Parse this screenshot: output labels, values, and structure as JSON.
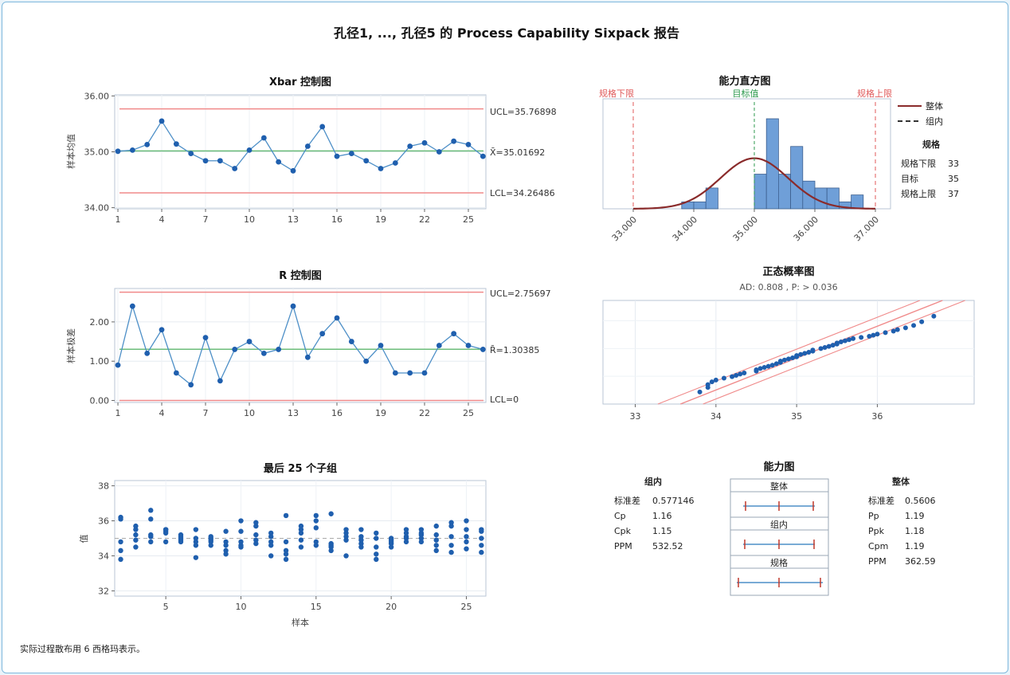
{
  "report": {
    "title": "孔径1, ..., 孔径5 的 Process Capability Sixpack 报告",
    "footnote": "实际过程散布用 6 西格玛表示。"
  },
  "colors": {
    "line": "#4d8fc7",
    "point": "#1f5fae",
    "center": "#6cbd7a",
    "limit": "#f08a8a",
    "spec": "#e05a5a",
    "target": "#2e9a4e",
    "curve": "#8a2b2b",
    "bar": "#6f9fd8",
    "barEdge": "#3d5f8f"
  },
  "chart_data": [
    {
      "id": "xbar",
      "type": "line",
      "title": "Xbar 控制图",
      "ylabel": "样本均值",
      "x": [
        1,
        2,
        3,
        4,
        5,
        6,
        7,
        8,
        9,
        10,
        11,
        12,
        13,
        14,
        15,
        16,
        17,
        18,
        19,
        20,
        21,
        22,
        23,
        24,
        25,
        26
      ],
      "values": [
        35.01,
        35.03,
        35.13,
        35.55,
        35.14,
        34.97,
        34.84,
        34.84,
        34.7,
        35.03,
        35.25,
        34.82,
        34.66,
        35.1,
        35.45,
        34.92,
        34.97,
        34.84,
        34.7,
        34.8,
        35.1,
        35.16,
        35.0,
        35.19,
        35.13,
        34.92
      ],
      "xticks": [
        1,
        4,
        7,
        10,
        13,
        16,
        19,
        22,
        25
      ],
      "yticks": [
        "34.00",
        "35.00",
        "36.00"
      ],
      "ylim": [
        33.98,
        36.02
      ],
      "ucl": 35.76898,
      "center": 35.01692,
      "lcl": 34.26486,
      "ucl_label": "UCL=35.76898",
      "center_label": "X̄=35.01692",
      "lcl_label": "LCL=34.26486"
    },
    {
      "id": "rchart",
      "type": "line",
      "title": "R 控制图",
      "ylabel": "样本极差",
      "x": [
        1,
        2,
        3,
        4,
        5,
        6,
        7,
        8,
        9,
        10,
        11,
        12,
        13,
        14,
        15,
        16,
        17,
        18,
        19,
        20,
        21,
        22,
        23,
        24,
        25,
        26
      ],
      "values": [
        0.9,
        2.4,
        1.2,
        1.8,
        0.7,
        0.4,
        1.6,
        0.5,
        1.3,
        1.5,
        1.2,
        1.3,
        2.4,
        1.1,
        1.7,
        2.1,
        1.5,
        1.0,
        1.4,
        0.7,
        0.7,
        0.7,
        1.4,
        1.7,
        1.4,
        1.3
      ],
      "xticks": [
        1,
        4,
        7,
        10,
        13,
        16,
        19,
        22,
        25
      ],
      "yticks": [
        "0.00",
        "1.00",
        "2.00"
      ],
      "ylim": [
        -0.05,
        2.85
      ],
      "ucl": 2.75697,
      "center": 1.30385,
      "lcl": 0,
      "ucl_label": "UCL=2.75697",
      "center_label": "R̄=1.30385",
      "lcl_label": "LCL=0"
    },
    {
      "id": "last25",
      "type": "scatter",
      "title": "最后 25 个子组",
      "xlabel": "样本",
      "ylabel": "值",
      "xticks": [
        5,
        10,
        15,
        20,
        25
      ],
      "yticks": [
        32,
        34,
        36,
        38
      ],
      "ylim": [
        31.7,
        38.3
      ],
      "xlim": [
        1.6,
        26.3
      ],
      "reference": 35.0,
      "groups": [
        {
          "x": 2,
          "y": [
            33.8,
            34.3,
            34.8,
            36.1,
            36.2
          ]
        },
        {
          "x": 3,
          "y": [
            34.5,
            34.9,
            35.2,
            35.5,
            35.7
          ]
        },
        {
          "x": 4,
          "y": [
            34.8,
            35.1,
            35.2,
            36.1,
            36.6
          ]
        },
        {
          "x": 5,
          "y": [
            34.8,
            35.3,
            35.4,
            35.5,
            35.5
          ]
        },
        {
          "x": 6,
          "y": [
            34.8,
            34.9,
            35.0,
            35.1,
            35.2
          ]
        },
        {
          "x": 7,
          "y": [
            33.9,
            34.6,
            34.8,
            35.0,
            35.5
          ]
        },
        {
          "x": 8,
          "y": [
            34.6,
            34.8,
            34.9,
            35.0,
            35.1
          ]
        },
        {
          "x": 9,
          "y": [
            34.1,
            34.3,
            34.6,
            34.8,
            35.4
          ]
        },
        {
          "x": 10,
          "y": [
            34.5,
            34.6,
            34.8,
            35.4,
            36.0
          ]
        },
        {
          "x": 11,
          "y": [
            34.7,
            34.9,
            35.2,
            35.7,
            35.9
          ]
        },
        {
          "x": 12,
          "y": [
            34.0,
            34.6,
            34.8,
            35.1,
            35.3
          ]
        },
        {
          "x": 13,
          "y": [
            33.8,
            34.1,
            34.3,
            34.8,
            36.3
          ]
        },
        {
          "x": 14,
          "y": [
            34.5,
            34.9,
            35.3,
            35.5,
            35.7
          ]
        },
        {
          "x": 15,
          "y": [
            34.6,
            34.8,
            35.6,
            36.0,
            36.3
          ]
        },
        {
          "x": 16,
          "y": [
            34.3,
            34.5,
            34.6,
            34.7,
            36.4
          ]
        },
        {
          "x": 17,
          "y": [
            34.0,
            34.9,
            35.1,
            35.3,
            35.5
          ]
        },
        {
          "x": 18,
          "y": [
            34.5,
            34.7,
            34.9,
            35.1,
            35.5
          ]
        },
        {
          "x": 19,
          "y": [
            33.8,
            34.1,
            34.5,
            35.0,
            35.3
          ]
        },
        {
          "x": 20,
          "y": [
            34.5,
            34.7,
            34.8,
            34.9,
            35.0
          ]
        },
        {
          "x": 21,
          "y": [
            34.8,
            35.0,
            35.1,
            35.3,
            35.5
          ]
        },
        {
          "x": 22,
          "y": [
            34.8,
            35.0,
            35.2,
            35.3,
            35.5
          ]
        },
        {
          "x": 23,
          "y": [
            34.3,
            34.6,
            34.9,
            35.2,
            35.7
          ]
        },
        {
          "x": 24,
          "y": [
            34.2,
            34.6,
            35.1,
            35.7,
            35.9
          ]
        },
        {
          "x": 25,
          "y": [
            34.4,
            34.8,
            35.1,
            35.5,
            36.0
          ]
        },
        {
          "x": 26,
          "y": [
            34.2,
            34.6,
            35.0,
            35.4,
            35.5
          ]
        }
      ]
    },
    {
      "id": "histogram",
      "type": "bar",
      "title": "能力直方图",
      "bin_start": 33.6,
      "bin_width": 0.2,
      "counts": [
        0,
        1,
        1,
        3,
        0,
        0,
        0,
        5,
        13,
        5,
        9,
        4,
        3,
        3,
        1,
        2,
        0,
        0
      ],
      "xticks": [
        "33.000",
        "34.000",
        "35.000",
        "36.000",
        "37.000"
      ],
      "xlim": [
        32.5,
        37.25
      ],
      "lsl_label": "规格下限",
      "target_label": "目标值",
      "usl_label": "规格上限",
      "lsl": 33,
      "target": 35,
      "usl": 37,
      "legend": [
        "整体",
        "组内"
      ],
      "spec_table": {
        "heading": "规格",
        "rows": [
          [
            "规格下限",
            "33"
          ],
          [
            "目标",
            "35"
          ],
          [
            "规格上限",
            "37"
          ]
        ]
      }
    },
    {
      "id": "normprob",
      "type": "scatter",
      "title": "正态概率图",
      "subtitle": "AD: 0.808 , P: > 0.036",
      "xticks": [
        33,
        34,
        35,
        36
      ],
      "xlim": [
        32.6,
        37.2
      ],
      "points": [
        [
          33.8,
          -2.35
        ],
        [
          33.9,
          -2.1
        ],
        [
          33.9,
          -1.95
        ],
        [
          33.95,
          -1.8
        ],
        [
          34.0,
          -1.7
        ],
        [
          34.1,
          -1.6
        ],
        [
          34.2,
          -1.52
        ],
        [
          34.25,
          -1.45
        ],
        [
          34.3,
          -1.38
        ],
        [
          34.35,
          -1.32
        ],
        [
          34.5,
          -1.22
        ],
        [
          34.5,
          -1.15
        ],
        [
          34.55,
          -1.08
        ],
        [
          34.6,
          -1.02
        ],
        [
          34.65,
          -0.96
        ],
        [
          34.7,
          -0.9
        ],
        [
          34.75,
          -0.82
        ],
        [
          34.8,
          -0.75
        ],
        [
          34.8,
          -0.68
        ],
        [
          34.85,
          -0.62
        ],
        [
          34.9,
          -0.56
        ],
        [
          34.95,
          -0.5
        ],
        [
          35.0,
          -0.45
        ],
        [
          35.0,
          -0.38
        ],
        [
          35.05,
          -0.32
        ],
        [
          35.1,
          -0.26
        ],
        [
          35.15,
          -0.2
        ],
        [
          35.2,
          -0.14
        ],
        [
          35.2,
          -0.08
        ],
        [
          35.3,
          0.0
        ],
        [
          35.35,
          0.06
        ],
        [
          35.4,
          0.12
        ],
        [
          35.45,
          0.18
        ],
        [
          35.5,
          0.24
        ],
        [
          35.5,
          0.3
        ],
        [
          35.55,
          0.36
        ],
        [
          35.6,
          0.42
        ],
        [
          35.65,
          0.48
        ],
        [
          35.7,
          0.54
        ],
        [
          35.8,
          0.6
        ],
        [
          35.9,
          0.66
        ],
        [
          35.95,
          0.72
        ],
        [
          36.0,
          0.78
        ],
        [
          36.1,
          0.86
        ],
        [
          36.2,
          0.94
        ],
        [
          36.25,
          1.02
        ],
        [
          36.35,
          1.12
        ],
        [
          36.45,
          1.25
        ],
        [
          36.55,
          1.45
        ],
        [
          36.7,
          1.75
        ]
      ]
    }
  ],
  "capability": {
    "within": {
      "heading": "组内",
      "rows": [
        [
          "标准差",
          "0.577146"
        ],
        [
          "Cp",
          "1.16"
        ],
        [
          "Cpk",
          "1.15"
        ],
        [
          "PPM",
          "532.52"
        ]
      ]
    },
    "overall": {
      "heading": "整体",
      "rows": [
        [
          "标准差",
          "0.5606"
        ],
        [
          "Pp",
          "1.19"
        ],
        [
          "Ppk",
          "1.18"
        ],
        [
          "Cpm",
          "1.19"
        ],
        [
          "PPM",
          "362.59"
        ]
      ]
    },
    "plot": {
      "title": "能力图",
      "bands": [
        "整体",
        "组内",
        "规格"
      ]
    }
  }
}
